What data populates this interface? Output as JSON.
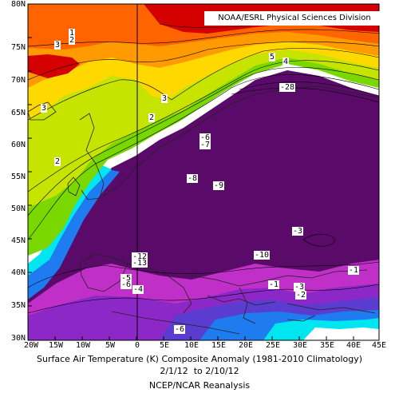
{
  "map": {
    "source_label": "NOAA/ESRL Physical Sciences Division",
    "title": "Surface Air Temperature (K) Composite Anomaly (1981-2010 Climatology)",
    "dates": "2/1/12  to 2/10/12",
    "reanalysis": "NCEP/NCAR Reanalysis",
    "lat_ticks": [
      "80N",
      "75N",
      "70N",
      "65N",
      "60N",
      "55N",
      "50N",
      "45N",
      "40N",
      "35N",
      "30N"
    ],
    "lon_ticks": [
      "20W",
      "15W",
      "10W",
      "5W",
      "0",
      "5E",
      "10E",
      "15E",
      "20E",
      "25E",
      "30E",
      "35E",
      "40E",
      "45E"
    ],
    "contour_labels": [
      "1",
      "2",
      "3",
      "3",
      "3",
      "2",
      "2",
      "5",
      "4",
      "-6",
      "-7",
      "-8",
      "-9",
      "-3",
      "-12",
      "-13",
      "-5",
      "-4",
      "-6",
      "-10",
      "-1",
      "-3",
      "-2",
      "-1",
      "-6",
      "-28"
    ],
    "colors": {
      "dark_red": "#d40000",
      "red_orange": "#ff6400",
      "orange": "#ff9a00",
      "yellow": "#ffd800",
      "yellow_green": "#c6e400",
      "green": "#7ad800",
      "white_zero": "#ffffff",
      "cyan": "#00e6f0",
      "blue": "#1e7cf0",
      "indigo": "#5a3cd0",
      "purple": "#8c28c8",
      "magenta": "#c030c8",
      "dark_purple": "#5a0a68"
    }
  }
}
